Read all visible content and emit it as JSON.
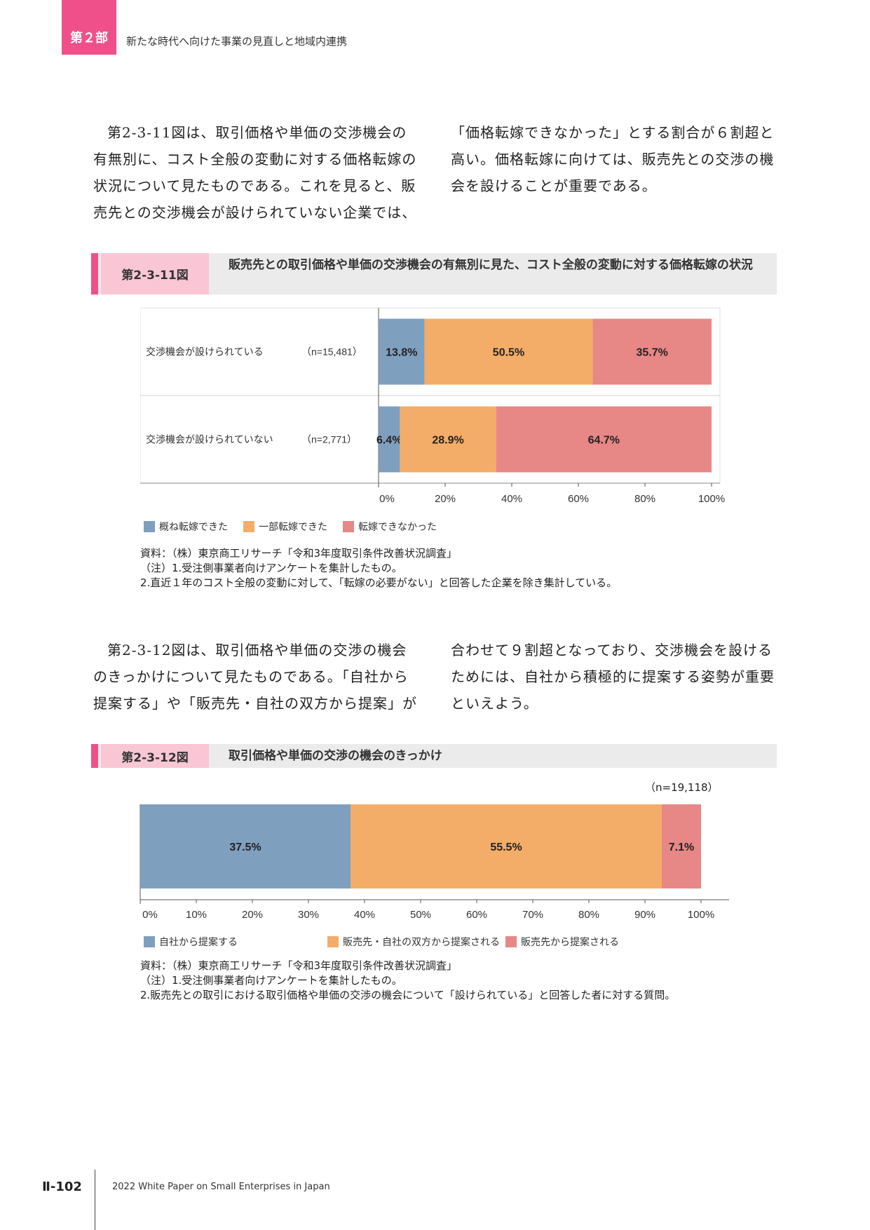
{
  "header": {
    "part": "第２部",
    "title": "新たな時代へ向けた事業の見直しと地域内連携"
  },
  "para1": {
    "left_lines": [
      "第2-3-11図は、取引価格や単価の交渉機会の",
      "有無別に、コスト全般の変動に対する価格転嫁の",
      "状況について見たものである。これを見ると、販",
      "売先との交渉機会が設けられていない企業では、"
    ],
    "right_lines": [
      "「価格転嫁できなかった」とする割合が６割超と",
      "高い。価格転嫁に向けては、販売先との交渉の機",
      "会を設けることが重要である。"
    ]
  },
  "fig1": {
    "number": "第2-3-11図",
    "title": "販売先との取引価格や単価の交渉機会の有無別に見た、コスト全般の変動に対する価格転嫁の状況",
    "source": "資料：（株）東京商工リサーチ「令和3年度取引条件改善状況調査」",
    "note1": "（注）1.受注側事業者向けアンケートを集計したもの。",
    "note2": "2.直近１年のコスト全般の変動に対して、「転嫁の必要がない」と回答した企業を除き集計している。"
  },
  "para2": {
    "left_lines": [
      "第2-3-12図は、取引価格や単価の交渉の機会",
      "のきっかけについて見たものである。「自社から",
      "提案する」や「販売先・自社の双方から提案」が"
    ],
    "right_lines": [
      "合わせて９割超となっており、交渉機会を設ける",
      "ためには、自社から積極的に提案する姿勢が重要",
      "といえよう。"
    ]
  },
  "fig2": {
    "number": "第2-3-12図",
    "title": "取引価格や単価の交渉の機会のきっかけ",
    "n_label": "（n=19,118）",
    "source": "資料：（株）東京商工リサーチ「令和3年度取引条件改善状況調査」",
    "note1": "（注）1.受注側事業者向けアンケートを集計したもの。",
    "note2": "2.販売先との取引における取引価格や単価の交渉の機会について「設けられている」と回答した者に対する質問。"
  },
  "chart_data": [
    {
      "type": "bar",
      "orientation": "horizontal-stacked-100",
      "categories": [
        "交渉機会が設けられている",
        "交渉機会が設けられていない"
      ],
      "n_labels": [
        "（n=15,481）",
        "（n=2,771）"
      ],
      "series": [
        {
          "name": "概ね転嫁できた",
          "values": [
            13.8,
            6.4
          ],
          "labels": [
            "13.8%",
            "6.4%"
          ],
          "color": "#7f9fbf"
        },
        {
          "name": "一部転嫁できた",
          "values": [
            50.5,
            28.9
          ],
          "labels": [
            "50.5%",
            "28.9%"
          ],
          "color": "#f3ad68"
        },
        {
          "name": "転嫁できなかった",
          "values": [
            35.7,
            64.7
          ],
          "labels": [
            "35.7%",
            "64.7%"
          ],
          "color": "#e78786"
        }
      ],
      "xticks": [
        "0%",
        "20%",
        "40%",
        "60%",
        "80%",
        "100%"
      ],
      "xlim": [
        0,
        100
      ],
      "legend": "bottom-left"
    },
    {
      "type": "bar",
      "orientation": "horizontal-stacked-100",
      "categories": [
        ""
      ],
      "series": [
        {
          "name": "自社から提案する",
          "values": [
            37.5
          ],
          "labels": [
            "37.5%"
          ],
          "color": "#7f9fbf"
        },
        {
          "name": "販売先・自社の双方から提案される",
          "values": [
            55.5
          ],
          "labels": [
            "55.5%"
          ],
          "color": "#f3ad68"
        },
        {
          "name": "販売先から提案される",
          "values": [
            7.1
          ],
          "labels": [
            "7.1%"
          ],
          "color": "#e78786"
        }
      ],
      "xticks": [
        "0%",
        "10%",
        "20%",
        "30%",
        "40%",
        "50%",
        "60%",
        "70%",
        "80%",
        "90%",
        "100%"
      ],
      "xlim": [
        0,
        100
      ],
      "legend": "bottom-left"
    }
  ],
  "footer": {
    "page": "Ⅱ-102",
    "text": "2022 White Paper on Small Enterprises in Japan"
  }
}
